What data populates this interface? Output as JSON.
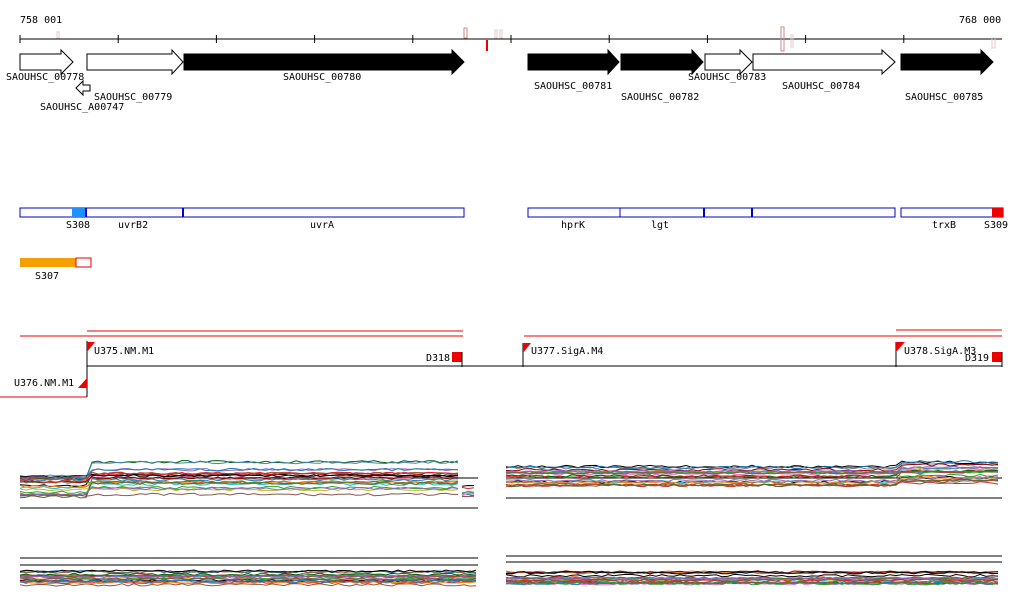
{
  "ruler": {
    "start_label": "758 001",
    "end_label": "768 000"
  },
  "genes": [
    {
      "id": "SAOUHSC_00778",
      "label": "SAOUHSC_00778",
      "fill": "#ffffff"
    },
    {
      "id": "SAOUHSC_A00747",
      "label": "SAOUHSC_A00747",
      "fill": "#ffffff"
    },
    {
      "id": "SAOUHSC_00779",
      "label": "SAOUHSC_00779",
      "fill": "#ffffff"
    },
    {
      "id": "SAOUHSC_00780",
      "label": "SAOUHSC_00780",
      "fill": "#000000"
    },
    {
      "id": "SAOUHSC_00781",
      "label": "SAOUHSC_00781",
      "fill": "#000000"
    },
    {
      "id": "SAOUHSC_00782",
      "label": "SAOUHSC_00782",
      "fill": "#000000"
    },
    {
      "id": "SAOUHSC_00783",
      "label": "SAOUHSC_00783",
      "fill": "#ffffff"
    },
    {
      "id": "SAOUHSC_00784",
      "label": "SAOUHSC_00784",
      "fill": "#ffffff"
    },
    {
      "id": "SAOUHSC_00785",
      "label": "SAOUHSC_00785",
      "fill": "#000000"
    }
  ],
  "operons": {
    "names": [
      "S308",
      "uvrB2",
      "uvrA",
      "hprK",
      "lgt",
      "trxB",
      "S309",
      "S307"
    ],
    "colors": {
      "border": "#0000cc",
      "S308": "#1e90ff",
      "S309": "#ee0000",
      "S307": "#f5a000"
    }
  },
  "tus": {
    "labels": [
      "U375.NM.M1",
      "D318",
      "U376.NM.M1",
      "U377.SigA.M4",
      "U378.SigA.M3",
      "D319"
    ],
    "color": "#ee0000"
  },
  "expression_colors": [
    "#000000",
    "#1f77b4",
    "#d62728",
    "#2ca02c",
    "#9467bd",
    "#8c564b",
    "#e377c2",
    "#7f7f7f",
    "#bcbd22",
    "#17becf",
    "#ff7f0e",
    "#006400",
    "#8b0000",
    "#4682b4",
    "#a0522d",
    "#556b2f"
  ]
}
